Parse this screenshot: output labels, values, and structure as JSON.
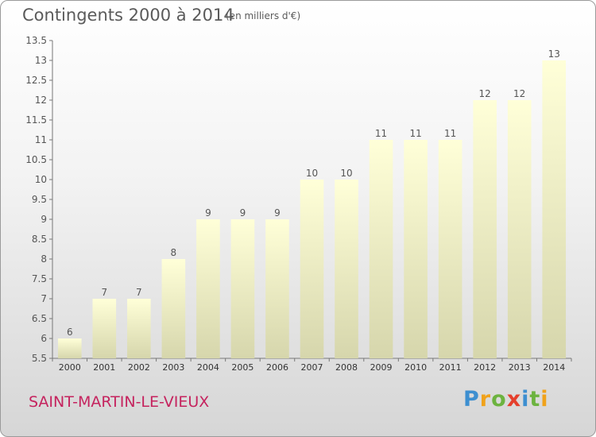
{
  "header": {
    "title": "Contingents 2000 à 2014",
    "subtitle": "(en milliers d'€)"
  },
  "footer": {
    "place": "SAINT-MARTIN-LE-VIEUX",
    "logo": "Proxiti"
  },
  "colors": {
    "bar_top": "#ffffd8",
    "bar_bottom": "#d6d6ac",
    "place_text": "#c5235e"
  },
  "chart_data": {
    "type": "bar",
    "title": "Contingents 2000 à 2014",
    "subtitle": "(en milliers d'€)",
    "xlabel": "",
    "ylabel": "",
    "categories": [
      "2000",
      "2001",
      "2002",
      "2003",
      "2004",
      "2005",
      "2006",
      "2007",
      "2008",
      "2009",
      "2010",
      "2011",
      "2012",
      "2013",
      "2014"
    ],
    "values": [
      6,
      7,
      7,
      8,
      9,
      9,
      9,
      10,
      10,
      11,
      11,
      11,
      12,
      12,
      13
    ],
    "data_labels": [
      "6",
      "7",
      "7",
      "8",
      "9",
      "9",
      "9",
      "10",
      "10",
      "11",
      "11",
      "11",
      "12",
      "12",
      "13"
    ],
    "ylim": [
      5.5,
      13.5
    ],
    "yticks": [
      "5.5",
      "6",
      "6.5",
      "7",
      "7.5",
      "8",
      "8.5",
      "9",
      "9.5",
      "10",
      "10.5",
      "11",
      "11.5",
      "12",
      "12.5",
      "13",
      "13.5"
    ],
    "grid": false,
    "legend": "none"
  }
}
